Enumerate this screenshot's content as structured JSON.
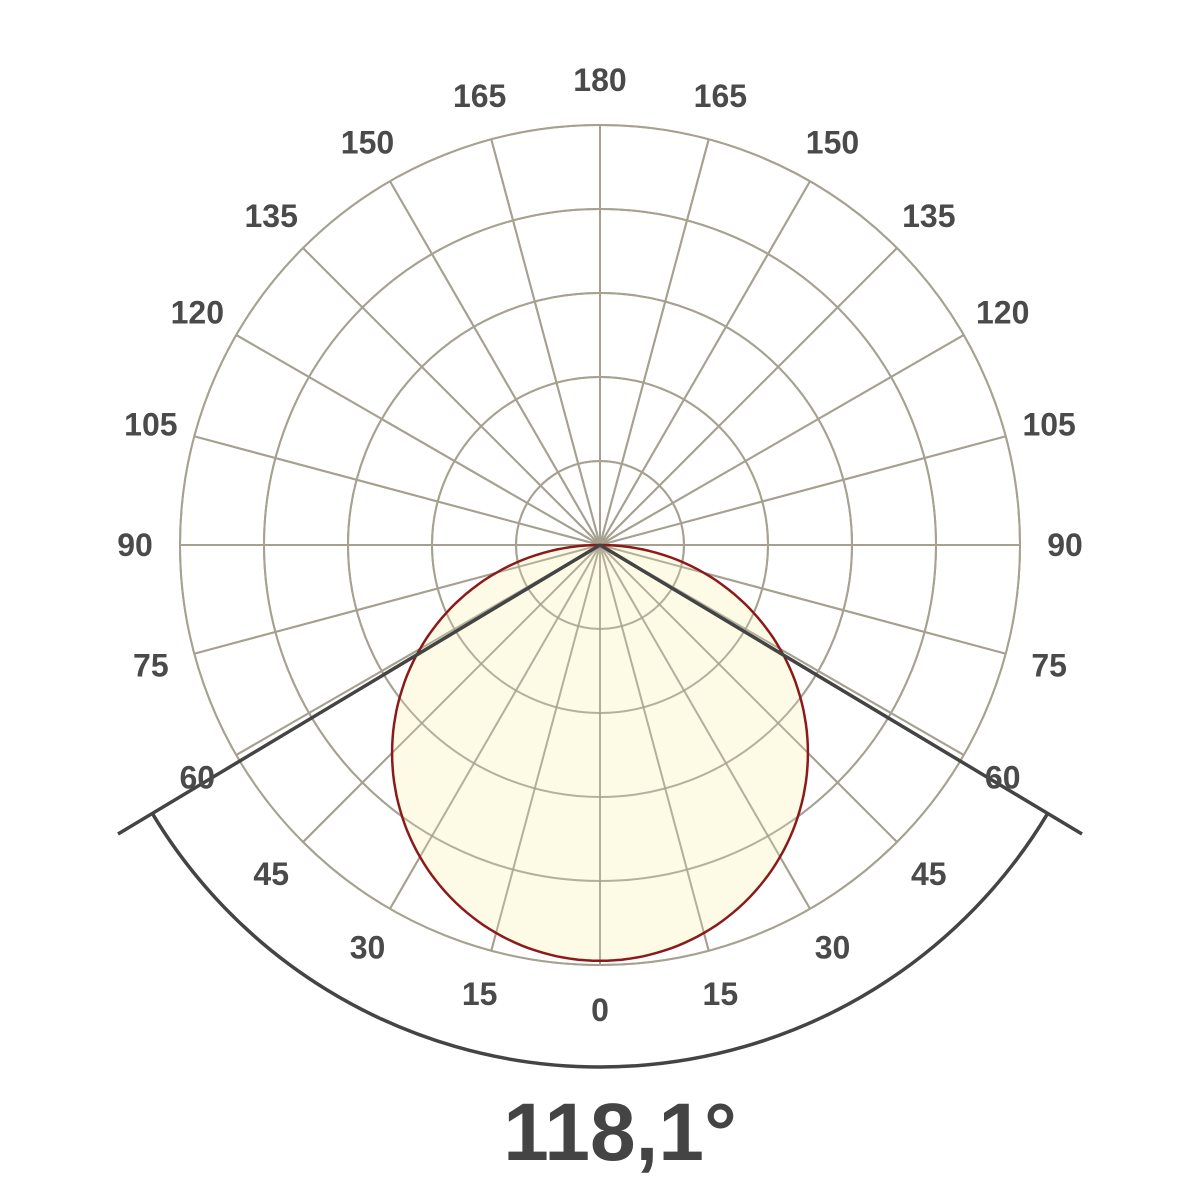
{
  "chart_data": {
    "type": "polar",
    "angle_ticks": [
      180,
      165,
      150,
      135,
      120,
      105,
      90,
      75,
      60,
      45,
      30,
      15,
      0
    ],
    "angle_step": 15,
    "rings": 5,
    "rlim": [
      0,
      1
    ],
    "grid": true,
    "series": [
      {
        "angles": [
          0,
          15,
          30,
          45,
          60,
          75,
          90
        ],
        "values": [
          0.99,
          0.956,
          0.857,
          0.7,
          0.495,
          0.256,
          0
        ],
        "line_color": "#8b1a1a",
        "fill_color": "#fdfae6"
      }
    ],
    "beam_angle_label": "118,1°",
    "beam_half_angle": 59.05,
    "colors": {
      "grid": "#9a9a9a",
      "beam_lines": "#444444",
      "text": "#4a4a4a"
    }
  }
}
